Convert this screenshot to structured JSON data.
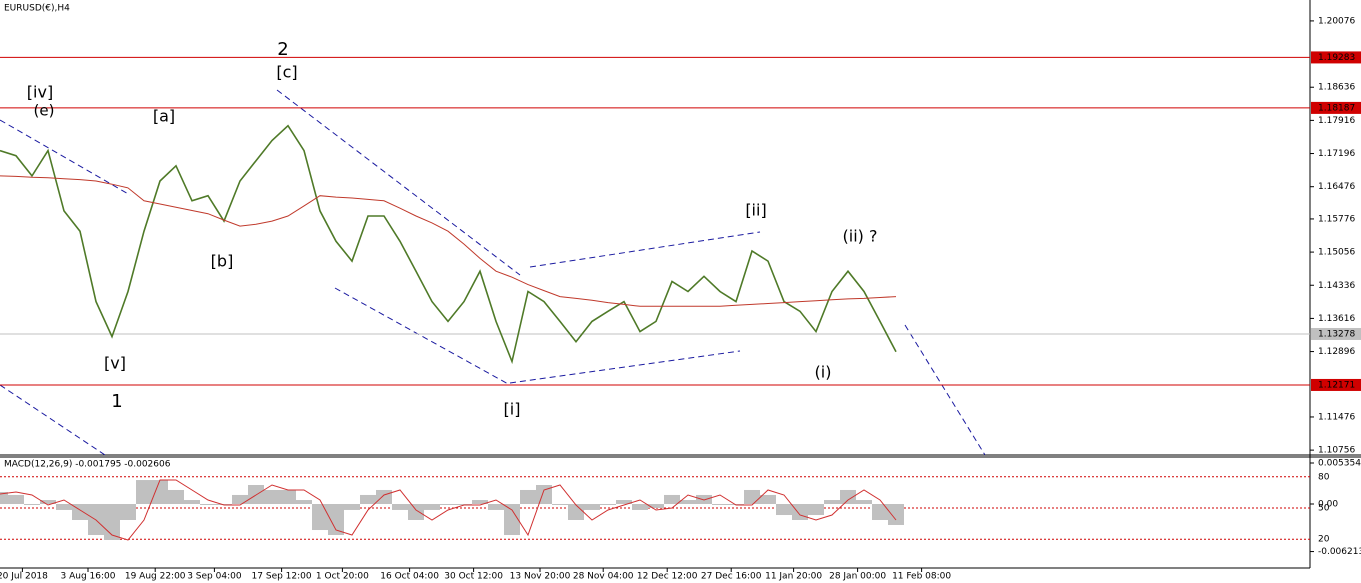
{
  "chart_data": [
    {
      "type": "line",
      "title": "EURUSD(€),H4",
      "x": [
        0,
        1,
        2,
        3,
        4,
        5,
        6,
        7,
        8,
        9,
        10,
        11,
        12,
        13,
        14,
        15,
        16,
        17,
        18,
        19,
        20,
        21,
        22,
        23,
        24,
        25,
        26,
        27,
        28,
        29,
        30,
        31,
        32,
        33,
        34,
        35,
        36,
        37,
        38,
        39,
        40,
        41,
        42,
        43,
        44,
        45,
        46,
        47,
        48,
        49,
        50,
        51,
        52,
        53,
        54,
        55,
        56
      ],
      "series": [
        {
          "color": "#4f7a28",
          "values": [
            1.1726,
            1.1715,
            1.1671,
            1.1726,
            1.1595,
            1.1551,
            1.1398,
            1.1322,
            1.142,
            1.1551,
            1.166,
            1.1693,
            1.1617,
            1.1628,
            1.1573,
            1.166,
            1.1704,
            1.1748,
            1.178,
            1.1726,
            1.1595,
            1.1529,
            1.1486,
            1.1584,
            1.1584,
            1.1529,
            1.1464,
            1.1398,
            1.1355,
            1.1398,
            1.1464,
            1.1355,
            1.1268,
            1.142,
            1.1398,
            1.1355,
            1.1311,
            1.1355,
            1.1377,
            1.1398,
            1.1333,
            1.1355,
            1.1442,
            1.142,
            1.1453,
            1.142,
            1.1398,
            1.1508,
            1.1486,
            1.1398,
            1.1377,
            1.1333,
            1.142,
            1.1464,
            1.142,
            1.1355,
            1.1289
          ]
        },
        {
          "color": "#c0392b",
          "values": [
            1.1671,
            1.167,
            1.1668,
            1.1667,
            1.1665,
            1.1663,
            1.166,
            1.1653,
            1.1645,
            1.1617,
            1.161,
            1.1603,
            1.1596,
            1.1589,
            1.1575,
            1.1562,
            1.1566,
            1.1573,
            1.1584,
            1.1606,
            1.1628,
            1.1625,
            1.1623,
            1.162,
            1.1617,
            1.1601,
            1.1584,
            1.1569,
            1.1551,
            1.1523,
            1.1492,
            1.1464,
            1.1451,
            1.1435,
            1.1422,
            1.1409,
            1.1405,
            1.1401,
            1.1396,
            1.1392,
            1.1388,
            1.1388,
            1.1388,
            1.1388,
            1.1388,
            1.1388,
            1.139,
            1.1392,
            1.1394,
            1.1396,
            1.1398,
            1.14,
            1.1402,
            1.1404,
            1.1405,
            1.1407,
            1.1409
          ]
        }
      ],
      "xlim": [
        0,
        81.875
      ],
      "xticks": [
        {
          "value": 1.4,
          "label": "20 Jul 2018"
        },
        {
          "value": 5.5,
          "label": "3 Aug 16:00"
        },
        {
          "value": 9.7,
          "label": "19 Aug 22:00"
        },
        {
          "value": 13.4,
          "label": "3 Sep 04:00"
        },
        {
          "value": 17.6,
          "label": "17 Sep 12:00"
        },
        {
          "value": 21.4,
          "label": "1 Oct 20:00"
        },
        {
          "value": 25.6,
          "label": "16 Oct 04:00"
        },
        {
          "value": 29.6,
          "label": "30 Oct 12:00"
        },
        {
          "value": 33.75,
          "label": "13 Nov 20:00"
        },
        {
          "value": 37.7,
          "label": "28 Nov 04:00"
        },
        {
          "value": 41.7,
          "label": "12 Dec 12:00"
        },
        {
          "value": 45.7,
          "label": "27 Dec 16:00"
        },
        {
          "value": 49.6,
          "label": "11 Jan 20:00"
        },
        {
          "value": 53.6,
          "label": "28 Jan 00:00"
        },
        {
          "value": 57.6,
          "label": "11 Feb 08:00"
        }
      ],
      "ylim": [
        1.1065,
        1.2053
      ],
      "yticks": [
        1.20076,
        1.18636,
        1.17916,
        1.17196,
        1.16476,
        1.15776,
        1.15056,
        1.14336,
        1.13616,
        1.12896,
        1.11476,
        1.10756
      ],
      "levels": [
        {
          "value": 1.19283,
          "color": "#d00000"
        },
        {
          "value": 1.18187,
          "color": "#d00000"
        },
        {
          "value": 1.12171,
          "color": "#d00000"
        },
        {
          "value": 1.13278,
          "color": "#c0c0c0"
        }
      ],
      "annotations": [
        {
          "text": "2",
          "color": "#1a1aa0"
        },
        {
          "text": "[c]",
          "color": "#2a8a2a"
        },
        {
          "text": "[iv]",
          "color": "#2a8a2a"
        },
        {
          "text": "(e)",
          "color": "#9a6b4a"
        },
        {
          "text": "[a]",
          "color": "#2a8a2a"
        },
        {
          "text": "[b]",
          "color": "#2a8a2a"
        },
        {
          "text": "[v]",
          "color": "#2a8a2a"
        },
        {
          "text": "1",
          "color": "#1a1aa0"
        },
        {
          "text": "[ii]",
          "color": "#2a8a2a"
        },
        {
          "text": "(ii) ?",
          "color": "#9a6b4a"
        },
        {
          "text": "(i)",
          "color": "#9a6b4a"
        },
        {
          "text": "[i]",
          "color": "#2a8a2a"
        }
      ]
    },
    {
      "type": "macd",
      "title": "MACD(12,26,9) -0.001795 -0.002606",
      "x": [
        0,
        1,
        2,
        3,
        4,
        5,
        6,
        7,
        8,
        9,
        10,
        11,
        12,
        13,
        14,
        15,
        16,
        17,
        18,
        19,
        20,
        21,
        22,
        23,
        24,
        25,
        26,
        27,
        28,
        29,
        30,
        31,
        32,
        33,
        34,
        35,
        36,
        37,
        38,
        39,
        40,
        41,
        42,
        43,
        44,
        45,
        46,
        47,
        48,
        49,
        50,
        51,
        52,
        53,
        54,
        55,
        56
      ],
      "series": [
        {
          "color": "#c0c0c0",
          "values": [
            0.00157,
            0.00118,
            -0.00013,
            0.00052,
            -0.00078,
            -0.00209,
            -0.00405,
            -0.0047,
            -0.00209,
            0.00313,
            0.00313,
            0.00183,
            0.00052,
            -0.00013,
            -0.00013,
            0.00118,
            0.00248,
            0.00183,
            0.00183,
            0.00052,
            -0.0034,
            -0.00405,
            -0.00078,
            0.00118,
            0.00183,
            -0.00078,
            -0.00209,
            -0.00078,
            -0.00013,
            -0.00013,
            0.00052,
            -0.00078,
            -0.00405,
            0.00183,
            0.00248,
            -0.00013,
            -0.00209,
            -0.00078,
            -0.00013,
            0.00052,
            -0.00078,
            -0.00052,
            0.00118,
            0.00052,
            0.00118,
            -0.00013,
            -0.00013,
            0.00183,
            0.00118,
            -0.00144,
            -0.00209,
            -0.00144,
            0.00052,
            0.00183,
            0.00052,
            -0.00209,
            -0.00274
          ]
        },
        {
          "color": "#d03030",
          "values": [
            0.0013,
            0.00157,
            0.00118,
            -0.00013,
            0.00052,
            -0.00078,
            -0.00209,
            -0.00405,
            -0.0047,
            -0.00209,
            0.00313,
            0.00313,
            0.00183,
            0.00052,
            -0.00013,
            -0.00013,
            0.00118,
            0.00248,
            0.00183,
            0.00183,
            0.00052,
            -0.0034,
            -0.00405,
            -0.00078,
            0.00118,
            0.00183,
            -0.00078,
            -0.00209,
            -0.00078,
            -0.00013,
            -0.00013,
            0.00052,
            -0.00078,
            -0.00405,
            0.00183,
            0.00248,
            -0.00013,
            -0.00209,
            -0.00078,
            -0.00013,
            0.00052,
            -0.00078,
            -0.00052,
            0.00118,
            0.00052,
            0.00118,
            -0.00013,
            -0.00013,
            0.00183,
            0.00118,
            -0.00144,
            -0.00209,
            -0.00144,
            0.00052,
            0.00183,
            0.00052,
            -0.00209
          ]
        }
      ],
      "xlim": [
        0,
        81.875
      ],
      "ylim": [
        -0.00836,
        0.00627
      ],
      "yticks": [
        0.005354,
        {
          "value": 0,
          "label": "0.00"
        },
        -0.006213
      ],
      "y2lim": [
        0,
        100
      ],
      "y2ticks": [
        80,
        50,
        20
      ]
    }
  ]
}
